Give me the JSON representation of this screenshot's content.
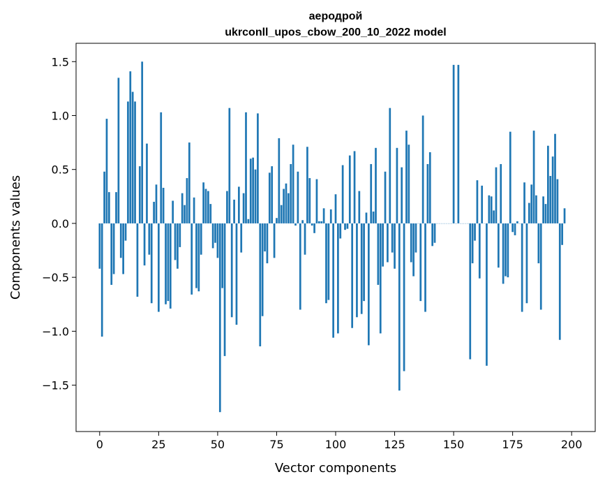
{
  "chart_data": {
    "type": "bar",
    "title": "аеродрой",
    "subtitle": "ukrconll_upos_cbow_200_10_2022 model",
    "xlabel": "Vector components",
    "ylabel": "Components values",
    "xlim": [
      -10,
      210
    ],
    "ylim": [
      -1.93,
      1.67
    ],
    "x_ticks": [
      0,
      25,
      50,
      75,
      100,
      125,
      150,
      175,
      200
    ],
    "y_ticks": [
      -1.5,
      -1.0,
      -0.5,
      0.0,
      0.5,
      1.0,
      1.5
    ],
    "x_tick_labels": [
      "0",
      "25",
      "50",
      "75",
      "100",
      "125",
      "150",
      "175",
      "200"
    ],
    "y_tick_labels": [
      "−1.5",
      "−1.0",
      "−0.5",
      "0.0",
      "0.5",
      "1.0",
      "1.5"
    ],
    "grid": false,
    "bar_color": "#1f77b4",
    "values": [
      -0.42,
      -1.05,
      0.48,
      0.97,
      0.29,
      -0.57,
      -0.47,
      0.29,
      1.35,
      -0.32,
      -0.47,
      -0.16,
      1.13,
      1.41,
      1.22,
      1.13,
      -0.68,
      0.53,
      1.5,
      -0.39,
      0.74,
      -0.29,
      -0.74,
      0.2,
      0.36,
      -0.82,
      1.03,
      0.33,
      -0.75,
      -0.72,
      -0.79,
      0.21,
      -0.34,
      -0.42,
      -0.22,
      0.28,
      0.17,
      0.42,
      0.75,
      -0.66,
      0.24,
      -0.6,
      -0.63,
      -0.29,
      0.38,
      0.32,
      0.3,
      0.18,
      -0.23,
      -0.18,
      -0.32,
      -1.75,
      -0.6,
      -1.23,
      0.3,
      1.07,
      -0.87,
      0.22,
      -0.94,
      0.34,
      -0.27,
      0.28,
      1.03,
      0.04,
      0.6,
      0.61,
      0.5,
      1.02,
      -1.14,
      -0.86,
      -0.26,
      -0.37,
      0.47,
      0.53,
      -0.32,
      0.05,
      0.79,
      0.17,
      0.32,
      0.37,
      0.28,
      0.55,
      0.73,
      -0.02,
      0.48,
      -0.8,
      0.03,
      -0.29,
      0.71,
      0.42,
      -0.02,
      -0.09,
      0.41,
      0.02,
      0.02,
      0.14,
      -0.74,
      -0.71,
      0.13,
      -1.06,
      0.27,
      -1.02,
      -0.14,
      0.54,
      -0.06,
      -0.05,
      0.63,
      -0.97,
      0.67,
      -0.87,
      0.3,
      -0.84,
      -0.72,
      0.1,
      -1.13,
      0.55,
      0.11,
      0.7,
      -0.57,
      -1.02,
      -0.4,
      0.48,
      -0.36,
      1.07,
      -0.27,
      -0.42,
      0.7,
      -1.55,
      0.52,
      -1.37,
      0.86,
      0.73,
      -0.36,
      -0.49,
      -0.27,
      0.0,
      -0.72,
      1.0,
      -0.82,
      0.55,
      0.66,
      -0.21,
      -0.18,
      0.0,
      0.0,
      0.0,
      0.0,
      0.0,
      0.0,
      0.0,
      1.47,
      0.0,
      1.47,
      0.0,
      0.0,
      0.0,
      0.0,
      -1.26,
      -0.37,
      -0.16,
      0.4,
      -0.51,
      0.35,
      0.0,
      -1.32,
      0.26,
      0.25,
      0.12,
      0.52,
      -0.41,
      0.55,
      -0.56,
      -0.49,
      -0.5,
      0.85,
      -0.08,
      -0.11,
      0.02,
      0.0,
      -0.82,
      0.38,
      -0.74,
      0.19,
      0.36,
      0.86,
      0.26,
      -0.37,
      -0.8,
      0.25,
      0.18,
      0.72,
      0.44,
      0.62,
      0.83,
      0.41,
      -1.08,
      -0.2,
      0.14
    ]
  }
}
